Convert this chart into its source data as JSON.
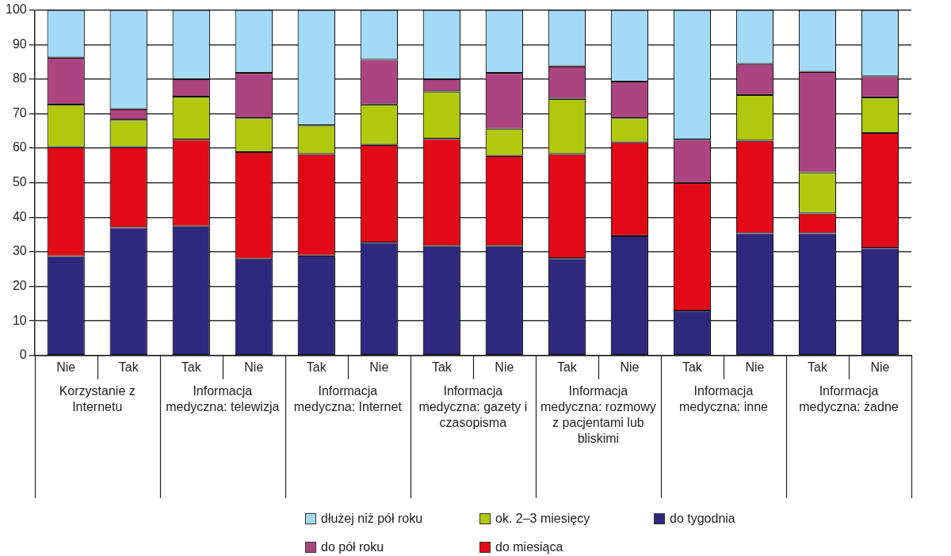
{
  "chart_data": {
    "type": "bar",
    "stacked": true,
    "categories": [
      "Nie",
      "Tak",
      "Tak",
      "Nie",
      "Tak",
      "Nie",
      "Tak",
      "Nie",
      "Tak",
      "Nie",
      "Tak",
      "Nie",
      "Tak",
      "Nie"
    ],
    "annotations": [
      "Korzystanie z Internetu",
      "Informacja medyczna: telewizja",
      "Informacja medyczna: Internet",
      "Informacja medyczna: gazety i czasopisma",
      "Informacja medyczna: rozmowy z pacjentami lub bliskimi",
      "Informacja medyczna: inne",
      "Informacja medyczna: żadne"
    ],
    "series": [
      {
        "name": "do tygodnia",
        "color": "#30277f",
        "values": [
          28.7,
          37.0,
          37.4,
          28.0,
          28.9,
          32.7,
          31.7,
          31.7,
          28.1,
          34.6,
          13.0,
          35.4,
          35.4,
          31.1
        ]
      },
      {
        "name": "do miesiąca",
        "color": "#e20a16",
        "values": [
          31.6,
          23.3,
          25.1,
          30.9,
          29.4,
          28.3,
          31.0,
          26.1,
          30.2,
          27.1,
          37.0,
          26.8,
          5.7,
          33.3
        ]
      },
      {
        "name": "ok. 2–3 miesięcy",
        "color": "#b0c90c",
        "values": [
          12.3,
          7.9,
          12.4,
          9.8,
          8.3,
          11.7,
          13.7,
          7.8,
          16.0,
          7.0,
          0,
          13.2,
          11.9,
          10.3
        ]
      },
      {
        "name": "do pół roku",
        "color": "#ab4480",
        "values": [
          13.6,
          3.1,
          5.1,
          13.1,
          0,
          12.9,
          3.6,
          16.2,
          9.4,
          10.6,
          12.5,
          9.0,
          29.1,
          6.1
        ]
      },
      {
        "name": "dłużej niż pół roku",
        "color": "#a3daf7",
        "values": [
          13.8,
          28.7,
          20.0,
          18.2,
          33.4,
          14.4,
          20.0,
          18.2,
          16.3,
          20.7,
          37.5,
          15.6,
          17.9,
          19.2
        ]
      }
    ],
    "ylim": [
      0,
      100
    ],
    "yticks": [
      0,
      10,
      20,
      30,
      40,
      50,
      60,
      70,
      80,
      90,
      100
    ],
    "grid": "y",
    "legend": "bottom"
  }
}
